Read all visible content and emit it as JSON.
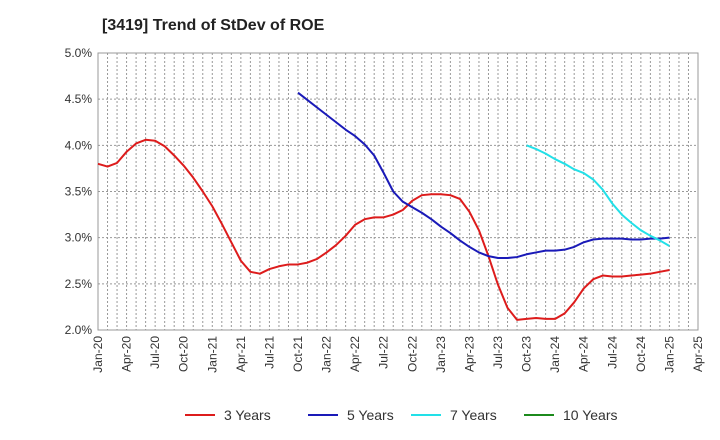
{
  "chart_data": {
    "type": "line",
    "title": "[3419]  Trend of StDev of ROE",
    "xlabel": "",
    "ylabel": "",
    "ylim": [
      2.0,
      5.0
    ],
    "y_ticks": [
      "2.0%",
      "2.5%",
      "3.0%",
      "3.5%",
      "4.0%",
      "4.5%",
      "5.0%"
    ],
    "y_tick_values": [
      2.0,
      2.5,
      3.0,
      3.5,
      4.0,
      4.5,
      5.0
    ],
    "x_ticks": [
      "Jan-20",
      "Apr-20",
      "Jul-20",
      "Oct-20",
      "Jan-21",
      "Apr-21",
      "Jul-21",
      "Oct-21",
      "Jan-22",
      "Apr-22",
      "Jul-22",
      "Oct-22",
      "Jan-23",
      "Apr-23",
      "Jul-23",
      "Oct-23",
      "Jan-24",
      "Apr-24",
      "Jul-24",
      "Oct-24",
      "Jan-25",
      "Apr-25"
    ],
    "x_unit": "month",
    "x_start": "2020-01",
    "x_end": "2025-04",
    "grid": true,
    "legend_position": "bottom",
    "series": [
      {
        "name": "3 Years",
        "color": "#dd1c1c",
        "points": [
          [
            "2020-01",
            3.8
          ],
          [
            "2020-02",
            3.77
          ],
          [
            "2020-03",
            3.81
          ],
          [
            "2020-04",
            3.93
          ],
          [
            "2020-05",
            4.02
          ],
          [
            "2020-06",
            4.06
          ],
          [
            "2020-07",
            4.05
          ],
          [
            "2020-08",
            3.99
          ],
          [
            "2020-09",
            3.89
          ],
          [
            "2020-10",
            3.78
          ],
          [
            "2020-11",
            3.65
          ],
          [
            "2020-12",
            3.5
          ],
          [
            "2021-01",
            3.34
          ],
          [
            "2021-02",
            3.15
          ],
          [
            "2021-03",
            2.95
          ],
          [
            "2021-04",
            2.75
          ],
          [
            "2021-05",
            2.63
          ],
          [
            "2021-06",
            2.61
          ],
          [
            "2021-07",
            2.66
          ],
          [
            "2021-08",
            2.69
          ],
          [
            "2021-09",
            2.71
          ],
          [
            "2021-10",
            2.71
          ],
          [
            "2021-11",
            2.73
          ],
          [
            "2021-12",
            2.77
          ],
          [
            "2022-01",
            2.84
          ],
          [
            "2022-02",
            2.92
          ],
          [
            "2022-03",
            3.02
          ],
          [
            "2022-04",
            3.14
          ],
          [
            "2022-05",
            3.2
          ],
          [
            "2022-06",
            3.22
          ],
          [
            "2022-07",
            3.22
          ],
          [
            "2022-08",
            3.25
          ],
          [
            "2022-09",
            3.3
          ],
          [
            "2022-10",
            3.4
          ],
          [
            "2022-11",
            3.46
          ],
          [
            "2022-12",
            3.47
          ],
          [
            "2023-01",
            3.47
          ],
          [
            "2023-02",
            3.46
          ],
          [
            "2023-03",
            3.42
          ],
          [
            "2023-04",
            3.28
          ],
          [
            "2023-05",
            3.08
          ],
          [
            "2023-06",
            2.8
          ],
          [
            "2023-07",
            2.49
          ],
          [
            "2023-08",
            2.24
          ],
          [
            "2023-09",
            2.11
          ],
          [
            "2023-10",
            2.12
          ],
          [
            "2023-11",
            2.13
          ],
          [
            "2023-12",
            2.12
          ],
          [
            "2024-01",
            2.12
          ],
          [
            "2024-02",
            2.18
          ],
          [
            "2024-03",
            2.3
          ],
          [
            "2024-04",
            2.45
          ],
          [
            "2024-05",
            2.55
          ],
          [
            "2024-06",
            2.59
          ],
          [
            "2024-07",
            2.58
          ],
          [
            "2024-08",
            2.58
          ],
          [
            "2024-09",
            2.59
          ],
          [
            "2024-10",
            2.6
          ],
          [
            "2024-11",
            2.61
          ],
          [
            "2024-12",
            2.63
          ],
          [
            "2025-01",
            2.65
          ]
        ]
      },
      {
        "name": "5 Years",
        "color": "#1a1ab8",
        "points": [
          [
            "2021-10",
            4.57
          ],
          [
            "2021-11",
            4.49
          ],
          [
            "2021-12",
            4.41
          ],
          [
            "2022-01",
            4.33
          ],
          [
            "2022-02",
            4.25
          ],
          [
            "2022-03",
            4.17
          ],
          [
            "2022-04",
            4.1
          ],
          [
            "2022-05",
            4.01
          ],
          [
            "2022-06",
            3.89
          ],
          [
            "2022-07",
            3.7
          ],
          [
            "2022-08",
            3.5
          ],
          [
            "2022-09",
            3.39
          ],
          [
            "2022-10",
            3.33
          ],
          [
            "2022-11",
            3.27
          ],
          [
            "2022-12",
            3.2
          ],
          [
            "2023-01",
            3.12
          ],
          [
            "2023-02",
            3.05
          ],
          [
            "2023-03",
            2.97
          ],
          [
            "2023-04",
            2.9
          ],
          [
            "2023-05",
            2.84
          ],
          [
            "2023-06",
            2.8
          ],
          [
            "2023-07",
            2.78
          ],
          [
            "2023-08",
            2.78
          ],
          [
            "2023-09",
            2.79
          ],
          [
            "2023-10",
            2.82
          ],
          [
            "2023-11",
            2.84
          ],
          [
            "2023-12",
            2.86
          ],
          [
            "2024-01",
            2.86
          ],
          [
            "2024-02",
            2.87
          ],
          [
            "2024-03",
            2.9
          ],
          [
            "2024-04",
            2.95
          ],
          [
            "2024-05",
            2.98
          ],
          [
            "2024-06",
            2.99
          ],
          [
            "2024-07",
            2.99
          ],
          [
            "2024-08",
            2.99
          ],
          [
            "2024-09",
            2.98
          ],
          [
            "2024-10",
            2.98
          ],
          [
            "2024-11",
            2.99
          ],
          [
            "2024-12",
            2.99
          ],
          [
            "2025-01",
            3.0
          ]
        ]
      },
      {
        "name": "7 Years",
        "color": "#22e0e8",
        "points": [
          [
            "2023-10",
            4.0
          ],
          [
            "2023-11",
            3.96
          ],
          [
            "2023-12",
            3.91
          ],
          [
            "2024-01",
            3.85
          ],
          [
            "2024-02",
            3.8
          ],
          [
            "2024-03",
            3.74
          ],
          [
            "2024-04",
            3.7
          ],
          [
            "2024-05",
            3.63
          ],
          [
            "2024-06",
            3.52
          ],
          [
            "2024-07",
            3.37
          ],
          [
            "2024-08",
            3.25
          ],
          [
            "2024-09",
            3.16
          ],
          [
            "2024-10",
            3.08
          ],
          [
            "2024-11",
            3.02
          ],
          [
            "2024-12",
            2.97
          ],
          [
            "2025-01",
            2.91
          ]
        ]
      },
      {
        "name": "10 Years",
        "color": "#1c8a1c",
        "points": []
      }
    ]
  }
}
